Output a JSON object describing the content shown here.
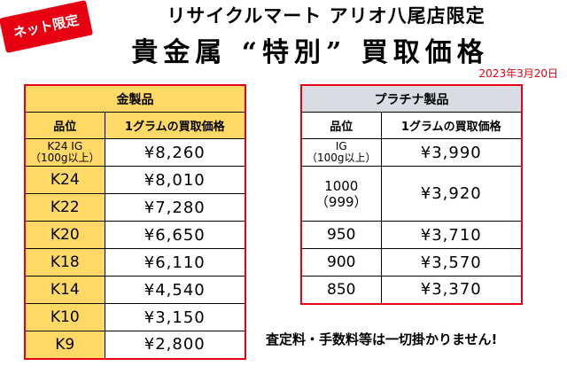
{
  "badge": "ネット限定",
  "header": {
    "store": "リサイクルマート アリオ八尾店限定",
    "headline": "貴金属 “特別” 買取価格",
    "date": "2023年3月20日"
  },
  "gold": {
    "title": "金製品",
    "col_grade": "品位",
    "col_price": "1グラムの買取価格",
    "rows": [
      {
        "grade": "K24 IG",
        "grade_sub": "（100g以上）",
        "price": "¥8,260"
      },
      {
        "grade": "K24",
        "price": "¥8,010"
      },
      {
        "grade": "K22",
        "price": "¥7,280"
      },
      {
        "grade": "K20",
        "price": "¥6,650"
      },
      {
        "grade": "K18",
        "price": "¥6,110"
      },
      {
        "grade": "K14",
        "price": "¥4,540"
      },
      {
        "grade": "K10",
        "price": "¥3,150"
      },
      {
        "grade": "K9",
        "price": "¥2,800"
      }
    ]
  },
  "platinum": {
    "title": "プラチナ製品",
    "col_grade": "品位",
    "col_price": "1グラムの買取価格",
    "rows": [
      {
        "grade": "IG",
        "grade_sub": "（100g以上）",
        "price": "¥3,990"
      },
      {
        "grade": "1000",
        "grade_sub": "（999）",
        "price": "¥3,920"
      },
      {
        "grade": "950",
        "price": "¥3,710"
      },
      {
        "grade": "900",
        "price": "¥3,570"
      },
      {
        "grade": "850",
        "price": "¥3,370"
      }
    ]
  },
  "notice": "査定料・手数料等は一切掛かりません!"
}
